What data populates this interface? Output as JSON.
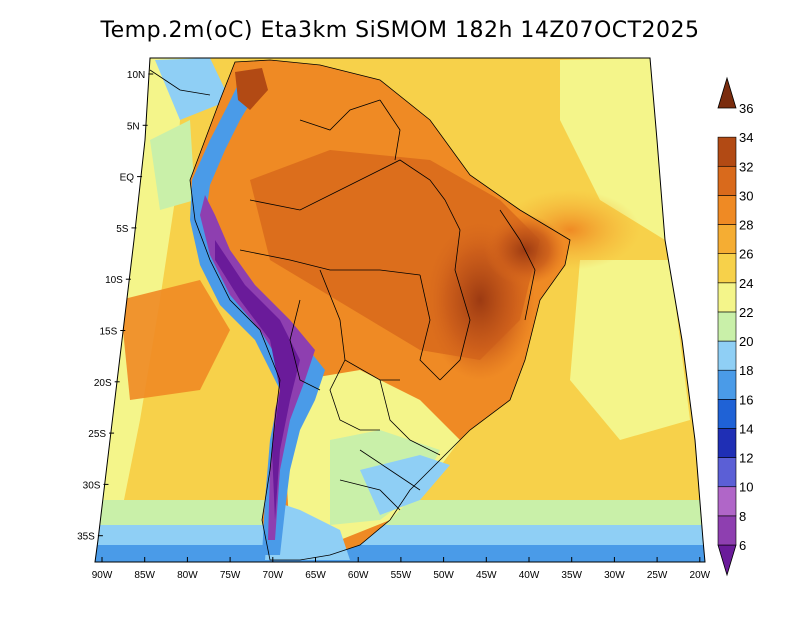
{
  "title": "Temp.2m(oC) Eta3km SiSMOM 182h 14Z07OCT2025",
  "lat_labels": [
    "10N",
    "5N",
    "EQ",
    "5S",
    "10S",
    "15S",
    "20S",
    "25S",
    "30S",
    "35S"
  ],
  "lon_labels": [
    "90W",
    "85W",
    "80W",
    "75W",
    "70W",
    "65W",
    "60W",
    "55W",
    "50W",
    "45W",
    "40W",
    "35W",
    "30W",
    "25W",
    "20W"
  ],
  "colorbar": {
    "labels": [
      "6",
      "8",
      "10",
      "12",
      "14",
      "16",
      "18",
      "20",
      "22",
      "24",
      "26",
      "28",
      "30",
      "32",
      "34",
      "36"
    ],
    "colors": [
      "#6a1b9a",
      "#8e3fb0",
      "#b066c8",
      "#5b5fd6",
      "#1f2fb5",
      "#1f62d6",
      "#4a9be8",
      "#8fcff5",
      "#c9f0a9",
      "#f4f58a",
      "#f7d14a",
      "#f5ad33",
      "#ef8a24",
      "#d96a1c",
      "#b24a14",
      "#7a2c0e"
    ]
  }
}
